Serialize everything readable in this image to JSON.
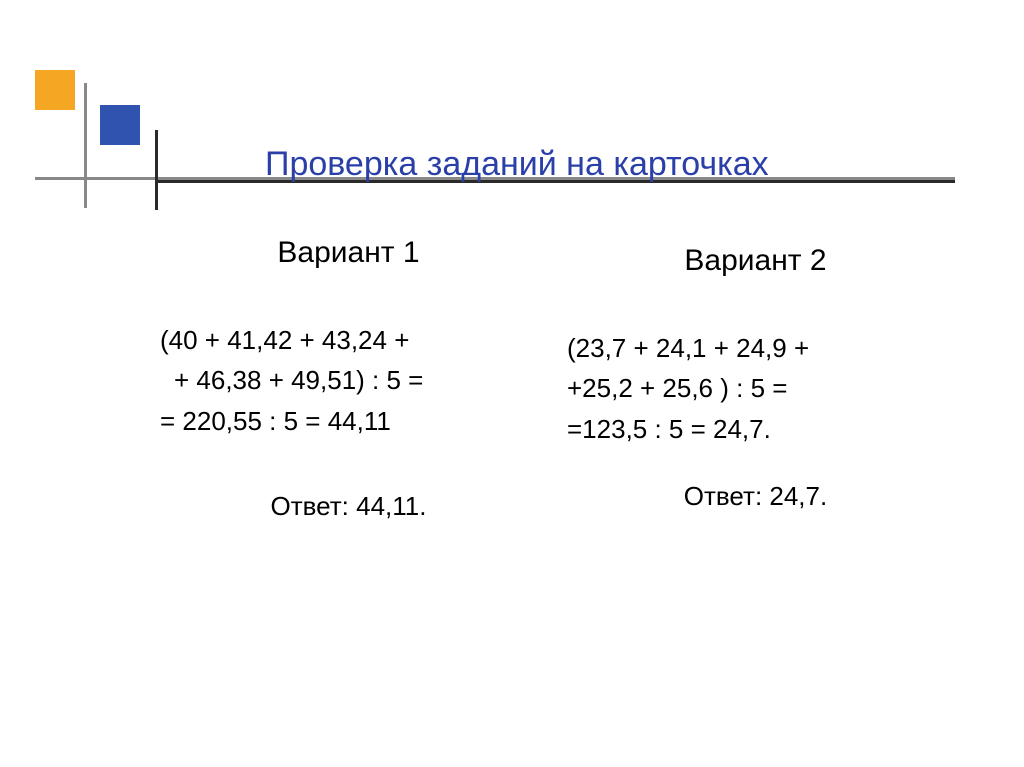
{
  "decoration": {
    "orange_color": "#f5a623",
    "blue_color": "#3053b0",
    "gray_line_color": "#888888",
    "dark_line_color": "#2a2a2a"
  },
  "title": "Проверка заданий на карточках",
  "title_color": "#2a3fa8",
  "title_fontsize": 34,
  "body_fontsize": 26,
  "variant1": {
    "heading": "Вариант 1",
    "line1": "(40 + 41,42 + 43,24 +",
    "line2": " + 46,38 + 49,51) : 5 =",
    "line3": "= 220,55 : 5 = 44,11",
    "answer": "Ответ: 44,11."
  },
  "variant2": {
    "heading": "Вариант 2",
    "line1": " (23,7 + 24,1 + 24,9 +",
    "line2": "+25,2 + 25,6 ) : 5 =",
    "line3": "=123,5 : 5 = 24,7.",
    "answer": "Ответ: 24,7."
  }
}
